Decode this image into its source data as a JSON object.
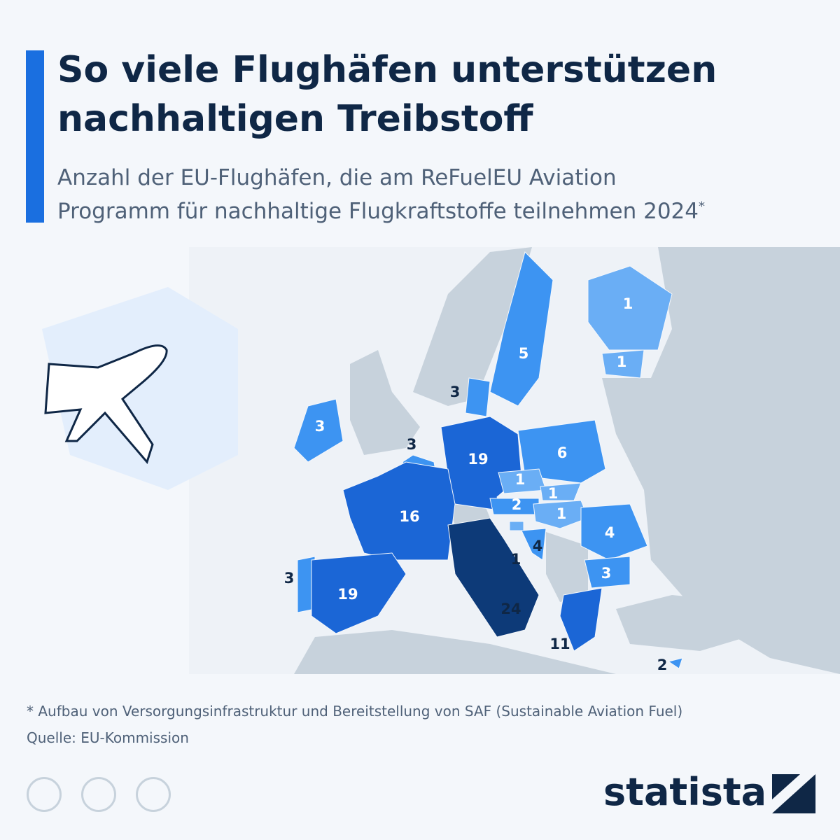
{
  "header": {
    "title_line1": "So viele Flughäfen unterstützen",
    "title_line2": "nachhaltigen Treibstoff",
    "subtitle_line1": "Anzahl der EU-Flughäfen, die am ReFuelEU Aviation",
    "subtitle_line2": "Programm für nachhaltige Flugkraftstoffe teilnehmen 2024",
    "subtitle_marker": "*"
  },
  "map": {
    "labels": [
      1,
      1,
      5,
      3,
      3,
      3,
      19,
      6,
      1,
      1,
      2,
      1,
      4,
      1,
      4,
      16,
      3,
      3,
      19,
      24,
      11,
      2
    ]
  },
  "footer": {
    "note": "* Aufbau von Versorgungsinfrastruktur und Bereitstellung von SAF (Sustainable Aviation Fuel)",
    "source": "Quelle: EU-Kommission",
    "brand": "statista"
  }
}
